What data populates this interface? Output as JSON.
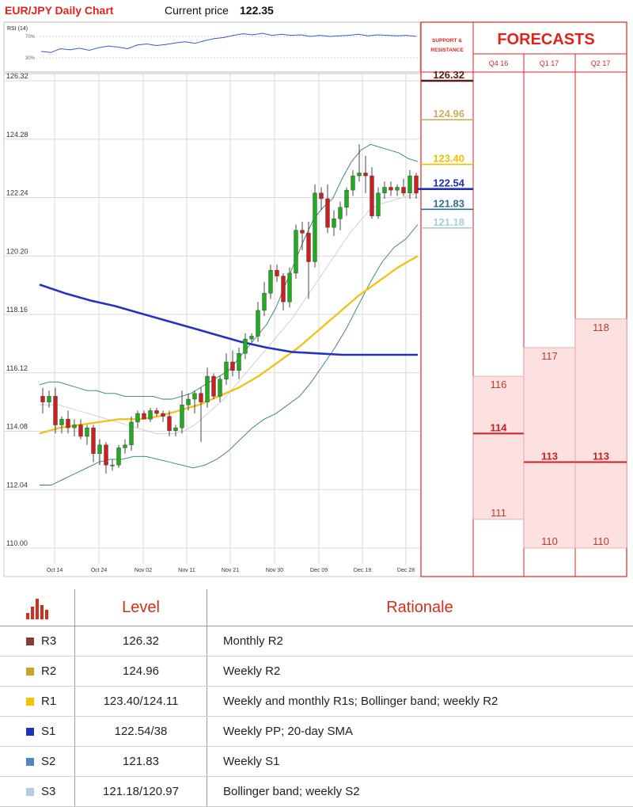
{
  "header": {
    "title": "EUR/JPY Daily Chart",
    "price_label": "Current price",
    "price_value": "122.35"
  },
  "rsi": {
    "label": "RSI (14)",
    "tick_top": "70%",
    "tick_bottom": "30%"
  },
  "support_resistance_title": [
    "SUPPORT &",
    "RESISTANCE"
  ],
  "forecasts": {
    "title": "FORECASTS",
    "columns": [
      {
        "label": "Q4 16",
        "high": 116,
        "mid": 114,
        "low": 111
      },
      {
        "label": "Q1 17",
        "high": 117,
        "mid": 113,
        "low": 110
      },
      {
        "label": "Q2 17",
        "high": 118,
        "mid": 113,
        "low": 110
      }
    ]
  },
  "chart_data": {
    "type": "candlestick",
    "title": "EUR/JPY Daily Chart",
    "y_ticks": [
      "126.32",
      "124.28",
      "122.24",
      "120.20",
      "118.16",
      "116.12",
      "114.08",
      "112.04",
      "110.00"
    ],
    "x_ticks": [
      "Oct 14",
      "Oct 24",
      "Nov 02",
      "Nov 11",
      "Nov 21",
      "Nov 30",
      "Dec 09",
      "Dec 19",
      "Dec 28"
    ],
    "ylim": [
      109.4,
      126.9
    ],
    "grid": true,
    "candles": [
      {
        "o": 115.3,
        "h": 115.6,
        "l": 114.7,
        "c": 115.1
      },
      {
        "o": 115.1,
        "h": 115.5,
        "l": 114.9,
        "c": 115.3
      },
      {
        "o": 115.3,
        "h": 115.6,
        "l": 114.0,
        "c": 114.3
      },
      {
        "o": 114.3,
        "h": 114.6,
        "l": 114.0,
        "c": 114.5
      },
      {
        "o": 114.5,
        "h": 114.8,
        "l": 114.0,
        "c": 114.2
      },
      {
        "o": 114.2,
        "h": 114.5,
        "l": 113.9,
        "c": 114.3
      },
      {
        "o": 114.3,
        "h": 114.5,
        "l": 113.8,
        "c": 113.9
      },
      {
        "o": 113.9,
        "h": 114.3,
        "l": 113.6,
        "c": 114.2
      },
      {
        "o": 114.2,
        "h": 114.3,
        "l": 113.0,
        "c": 113.3
      },
      {
        "o": 113.3,
        "h": 113.8,
        "l": 112.9,
        "c": 113.6
      },
      {
        "o": 113.6,
        "h": 113.7,
        "l": 112.6,
        "c": 112.9
      },
      {
        "o": 112.9,
        "h": 113.1,
        "l": 112.7,
        "c": 112.9
      },
      {
        "o": 112.9,
        "h": 113.6,
        "l": 112.8,
        "c": 113.5
      },
      {
        "o": 113.5,
        "h": 113.8,
        "l": 113.3,
        "c": 113.6
      },
      {
        "o": 113.6,
        "h": 114.6,
        "l": 113.4,
        "c": 114.4
      },
      {
        "o": 114.4,
        "h": 114.8,
        "l": 114.2,
        "c": 114.7
      },
      {
        "o": 114.7,
        "h": 114.8,
        "l": 114.5,
        "c": 114.5
      },
      {
        "o": 114.5,
        "h": 114.9,
        "l": 114.4,
        "c": 114.8
      },
      {
        "o": 114.8,
        "h": 114.9,
        "l": 114.6,
        "c": 114.7
      },
      {
        "o": 114.7,
        "h": 114.8,
        "l": 114.4,
        "c": 114.6
      },
      {
        "o": 114.6,
        "h": 114.8,
        "l": 113.9,
        "c": 114.1
      },
      {
        "o": 114.1,
        "h": 114.3,
        "l": 113.9,
        "c": 114.2
      },
      {
        "o": 114.2,
        "h": 115.5,
        "l": 114.0,
        "c": 115.0
      },
      {
        "o": 115.0,
        "h": 115.4,
        "l": 114.8,
        "c": 115.2
      },
      {
        "o": 115.2,
        "h": 115.5,
        "l": 114.7,
        "c": 115.4
      },
      {
        "o": 115.4,
        "h": 115.6,
        "l": 113.7,
        "c": 115.1
      },
      {
        "o": 115.1,
        "h": 116.3,
        "l": 114.9,
        "c": 116.0
      },
      {
        "o": 116.0,
        "h": 116.1,
        "l": 115.2,
        "c": 115.3
      },
      {
        "o": 115.3,
        "h": 116.0,
        "l": 115.1,
        "c": 115.9
      },
      {
        "o": 115.9,
        "h": 116.8,
        "l": 115.7,
        "c": 116.5
      },
      {
        "o": 116.5,
        "h": 116.9,
        "l": 116.0,
        "c": 116.2
      },
      {
        "o": 116.2,
        "h": 117.0,
        "l": 115.9,
        "c": 116.8
      },
      {
        "o": 116.8,
        "h": 117.5,
        "l": 116.6,
        "c": 117.3
      },
      {
        "o": 117.3,
        "h": 117.5,
        "l": 117.2,
        "c": 117.4
      },
      {
        "o": 117.4,
        "h": 118.6,
        "l": 117.2,
        "c": 118.3
      },
      {
        "o": 118.3,
        "h": 119.3,
        "l": 118.1,
        "c": 118.9
      },
      {
        "o": 118.9,
        "h": 119.9,
        "l": 118.7,
        "c": 119.7
      },
      {
        "o": 119.7,
        "h": 119.9,
        "l": 119.3,
        "c": 119.5
      },
      {
        "o": 119.5,
        "h": 119.6,
        "l": 118.3,
        "c": 118.6
      },
      {
        "o": 118.6,
        "h": 119.8,
        "l": 118.4,
        "c": 119.6
      },
      {
        "o": 119.6,
        "h": 121.3,
        "l": 119.4,
        "c": 121.1
      },
      {
        "o": 121.1,
        "h": 121.4,
        "l": 120.4,
        "c": 121.0
      },
      {
        "o": 121.0,
        "h": 121.4,
        "l": 118.7,
        "c": 120.0
      },
      {
        "o": 120.0,
        "h": 122.7,
        "l": 119.8,
        "c": 122.4
      },
      {
        "o": 122.4,
        "h": 122.6,
        "l": 121.8,
        "c": 122.2
      },
      {
        "o": 122.2,
        "h": 122.7,
        "l": 121.0,
        "c": 121.2
      },
      {
        "o": 121.2,
        "h": 121.8,
        "l": 120.9,
        "c": 121.5
      },
      {
        "o": 121.5,
        "h": 122.1,
        "l": 121.1,
        "c": 121.9
      },
      {
        "o": 121.9,
        "h": 122.6,
        "l": 121.6,
        "c": 122.5
      },
      {
        "o": 122.5,
        "h": 123.2,
        "l": 122.3,
        "c": 123.0
      },
      {
        "o": 123.0,
        "h": 124.1,
        "l": 122.8,
        "c": 123.1
      },
      {
        "o": 123.1,
        "h": 123.7,
        "l": 122.4,
        "c": 123.0
      },
      {
        "o": 123.0,
        "h": 123.3,
        "l": 121.5,
        "c": 121.6
      },
      {
        "o": 121.6,
        "h": 122.6,
        "l": 121.5,
        "c": 122.4
      },
      {
        "o": 122.4,
        "h": 122.8,
        "l": 122.2,
        "c": 122.6
      },
      {
        "o": 122.6,
        "h": 122.8,
        "l": 122.3,
        "c": 122.5
      },
      {
        "o": 122.5,
        "h": 122.7,
        "l": 122.3,
        "c": 122.6
      },
      {
        "o": 122.6,
        "h": 122.9,
        "l": 122.3,
        "c": 122.4
      },
      {
        "o": 122.4,
        "h": 123.2,
        "l": 122.2,
        "c": 123.0
      },
      {
        "o": 123.0,
        "h": 123.1,
        "l": 122.2,
        "c": 122.4
      }
    ],
    "bollinger_upper": [
      115.7,
      115.8,
      115.8,
      115.7,
      115.6,
      115.5,
      115.5,
      115.4,
      115.4,
      115.3,
      115.3,
      115.3,
      115.3,
      115.2,
      115.2,
      115.3,
      115.4,
      115.6,
      115.8,
      116.0,
      116.2,
      116.6,
      117.0,
      117.4,
      117.8,
      118.4,
      119.2,
      120.0,
      120.8,
      121.5,
      121.9,
      122.2,
      122.9,
      123.5,
      123.9,
      124.1,
      124.0,
      123.9,
      123.8,
      123.6,
      123.5
    ],
    "bollinger_lower": [
      112.2,
      112.2,
      112.4,
      112.6,
      112.8,
      113.0,
      113.1,
      113.1,
      113.2,
      113.2,
      113.1,
      113.0,
      112.9,
      112.8,
      112.9,
      113.1,
      113.4,
      113.8,
      114.2,
      114.5,
      114.7,
      115.0,
      115.3,
      115.8,
      116.4,
      117.0,
      117.7,
      118.5,
      119.3,
      120.0,
      120.5,
      120.8,
      121.3
    ],
    "sma_20": [
      115.0,
      115.0,
      115.0,
      114.9,
      114.8,
      114.7,
      114.6,
      114.5,
      114.4,
      114.3,
      114.2,
      114.1,
      114.0,
      114.0,
      114.0,
      114.1,
      114.3,
      114.6,
      114.9,
      115.2,
      115.6,
      116.0,
      116.4,
      116.8,
      117.2,
      117.6,
      118.0,
      118.5,
      119.0,
      119.5,
      120.0,
      120.5,
      121.0,
      121.4,
      121.8,
      122.0,
      122.1,
      122.2,
      122.3,
      122.4
    ],
    "sma_100": [
      114.0,
      114.2,
      114.3,
      114.4,
      114.5,
      114.5,
      114.6,
      114.8,
      115.0,
      115.3,
      115.6,
      116.0,
      116.5,
      117.0,
      117.6,
      118.2,
      118.8,
      119.3,
      119.8,
      120.2
    ],
    "sma_200": [
      119.2,
      118.9,
      118.65,
      118.45,
      118.2,
      117.95,
      117.7,
      117.45,
      117.2,
      117.0,
      116.85,
      116.8,
      116.75,
      116.75,
      116.75,
      116.75
    ],
    "rsi_values": [
      42,
      40,
      47,
      45,
      48,
      44,
      49,
      52,
      50,
      47,
      54,
      56,
      53,
      55,
      58,
      60,
      57,
      62,
      66,
      68,
      72,
      75,
      73,
      76,
      72,
      74,
      72,
      73,
      70,
      72,
      70,
      71,
      72,
      74,
      71,
      73,
      72,
      71,
      72,
      70
    ],
    "support_resistance": [
      {
        "name": "R3",
        "value": 126.32,
        "color": "#5b1a1a"
      },
      {
        "name": "R2",
        "value": 124.96,
        "color": "#cdae5e"
      },
      {
        "name": "R1",
        "value": 123.4,
        "color": "#f0c000"
      },
      {
        "name": "S1",
        "value": 122.54,
        "color": "#1f2fb8"
      },
      {
        "name": "S2",
        "value": 121.83,
        "color": "#2f6f8a"
      },
      {
        "name": "S3",
        "value": 121.18,
        "color": "#a9cfd0"
      }
    ]
  },
  "table": {
    "header": {
      "level": "Level",
      "rationale": "Rationale"
    },
    "rows": [
      {
        "name": "R3",
        "level": "126.32",
        "rationale": "Monthly R2",
        "color": "#8b3a3a"
      },
      {
        "name": "R2",
        "level": "124.96",
        "rationale": "Weekly R2",
        "color": "#c9a227"
      },
      {
        "name": "R1",
        "level": "123.40/124.11",
        "rationale": "Weekly and monthly R1s; Bollinger band; weekly R2",
        "color": "#f5c400"
      },
      {
        "name": "S1",
        "level": "122.54/38",
        "rationale": "Weekly PP; 20-day SMA",
        "color": "#1f2fb8"
      },
      {
        "name": "S2",
        "level": "121.83",
        "rationale": "Weekly S1",
        "color": "#4f86c6"
      },
      {
        "name": "S3",
        "level": "121.18/120.97",
        "rationale": "Bollinger band; weekly S2",
        "color": "#b7cde6"
      }
    ]
  }
}
